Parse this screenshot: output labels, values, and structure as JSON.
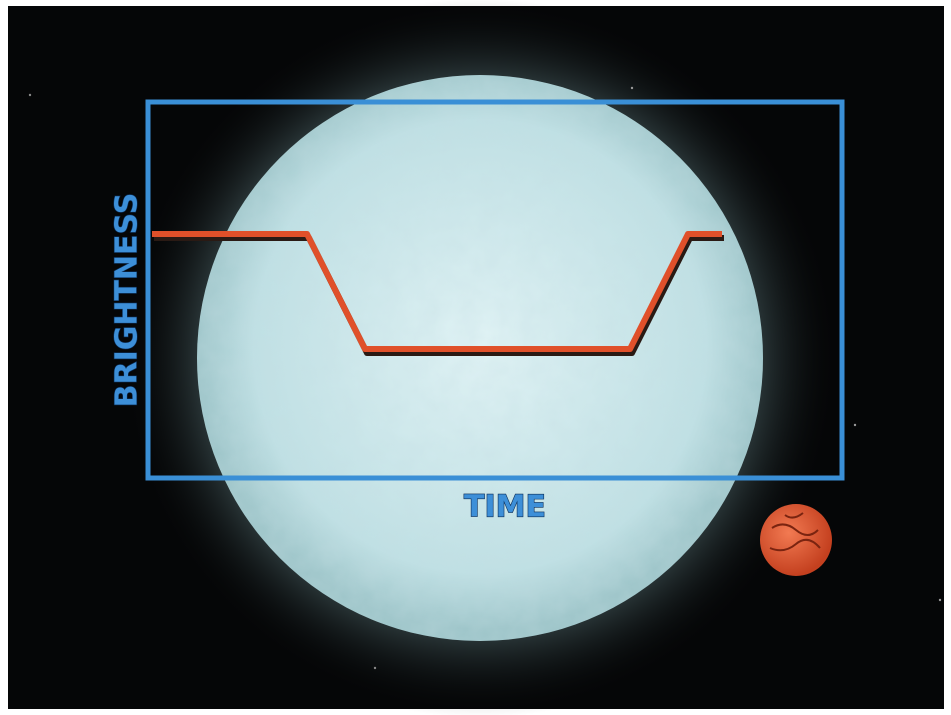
{
  "axes": {
    "y_label": "BRIGHTNESS",
    "x_label": "TIME"
  }
}
